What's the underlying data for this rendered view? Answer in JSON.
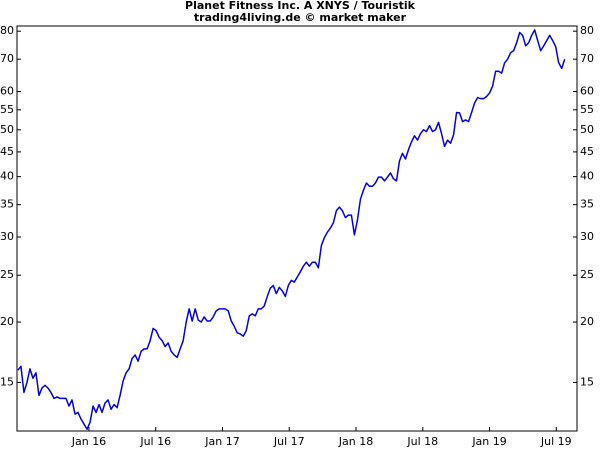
{
  "chart_data": {
    "type": "line",
    "title": "Planet Fitness Inc. A XNYS / Touristik",
    "subtitle": "trading4living.de © market maker",
    "log_y": true,
    "grid": false,
    "color": "#0000ee",
    "x": [
      2015.468,
      2015.4905,
      2015.513,
      2015.5355,
      2015.558,
      2015.5805,
      2015.603,
      2015.6255,
      2015.648,
      2015.6705,
      2015.693,
      2015.7155,
      2015.738,
      2015.7605,
      2015.783,
      2015.8055,
      2015.828,
      2015.8505,
      2015.873,
      2015.8955,
      2015.918,
      2015.9405,
      2015.963,
      2015.9855,
      2016.008,
      2016.0305,
      2016.053,
      2016.0755,
      2016.098,
      2016.1205,
      2016.143,
      2016.1655,
      2016.188,
      2016.2105,
      2016.233,
      2016.2555,
      2016.278,
      2016.3005,
      2016.323,
      2016.3455,
      2016.368,
      2016.3905,
      2016.413,
      2016.4355,
      2016.458,
      2016.4805,
      2016.503,
      2016.5255,
      2016.548,
      2016.5705,
      2016.593,
      2016.6155,
      2016.638,
      2016.6605,
      2016.683,
      2016.7055,
      2016.728,
      2016.7505,
      2016.773,
      2016.7955,
      2016.818,
      2016.8405,
      2016.863,
      2016.8855,
      2016.908,
      2016.9305,
      2016.953,
      2016.9755,
      2016.998,
      2017.0205,
      2017.043,
      2017.0655,
      2017.088,
      2017.1105,
      2017.133,
      2017.1555,
      2017.178,
      2017.2005,
      2017.223,
      2017.2455,
      2017.268,
      2017.2905,
      2017.313,
      2017.3355,
      2017.358,
      2017.3805,
      2017.403,
      2017.4255,
      2017.448,
      2017.4705,
      2017.493,
      2017.5155,
      2017.538,
      2017.5605,
      2017.583,
      2017.6055,
      2017.628,
      2017.6505,
      2017.673,
      2017.6955,
      2017.718,
      2017.7405,
      2017.763,
      2017.7855,
      2017.808,
      2017.8305,
      2017.853,
      2017.8755,
      2017.898,
      2017.9205,
      2017.943,
      2017.9655,
      2017.988,
      2018.0105,
      2018.033,
      2018.0555,
      2018.078,
      2018.1005,
      2018.123,
      2018.1455,
      2018.168,
      2018.1905,
      2018.213,
      2018.2355,
      2018.258,
      2018.2805,
      2018.303,
      2018.3255,
      2018.348,
      2018.3705,
      2018.393,
      2018.4155,
      2018.438,
      2018.4605,
      2018.483,
      2018.5055,
      2018.528,
      2018.5505,
      2018.573,
      2018.5955,
      2018.618,
      2018.6405,
      2018.663,
      2018.6855,
      2018.708,
      2018.7305,
      2018.753,
      2018.7755,
      2018.798,
      2018.8205,
      2018.843,
      2018.8655,
      2018.888,
      2018.9105,
      2018.933,
      2018.9555,
      2018.978,
      2019.0005,
      2019.023,
      2019.0455,
      2019.068,
      2019.0905,
      2019.113,
      2019.1355,
      2019.158,
      2019.1805,
      2019.203,
      2019.2255,
      2019.248,
      2019.2705,
      2019.293,
      2019.3155,
      2019.338,
      2019.3605,
      2019.383,
      2019.4055,
      2019.428,
      2019.4505,
      2019.473,
      2019.4955,
      2019.518,
      2019.5405,
      2019.563
    ],
    "values": [
      15.9,
      16.2,
      14.3,
      15.0,
      16.0,
      15.3,
      15.7,
      14.1,
      14.6,
      14.8,
      14.6,
      14.3,
      13.9,
      14.0,
      13.9,
      13.9,
      13.9,
      13.4,
      13.8,
      12.9,
      13.0,
      12.6,
      12.3,
      12.0,
      12.4,
      13.4,
      13.0,
      13.5,
      13.0,
      13.6,
      13.8,
      13.2,
      13.5,
      13.3,
      14.1,
      15.1,
      15.7,
      16.0,
      16.8,
      17.1,
      16.6,
      17.4,
      17.6,
      17.6,
      18.3,
      19.4,
      19.2,
      18.6,
      18.3,
      17.8,
      18.1,
      17.4,
      17.1,
      16.9,
      17.6,
      18.3,
      20.0,
      21.3,
      20.1,
      21.3,
      20.2,
      20.0,
      20.5,
      20.1,
      20.1,
      20.5,
      21.1,
      21.3,
      21.3,
      21.3,
      21.1,
      20.1,
      19.6,
      19.0,
      18.9,
      18.7,
      19.2,
      20.6,
      20.8,
      20.6,
      21.3,
      21.3,
      21.6,
      22.6,
      23.5,
      23.8,
      22.9,
      23.6,
      23.2,
      22.6,
      23.8,
      24.4,
      24.2,
      24.8,
      25.4,
      26.1,
      26.6,
      26.1,
      26.6,
      26.6,
      25.9,
      28.8,
      29.9,
      30.7,
      31.3,
      32.1,
      34.0,
      34.6,
      34.0,
      32.9,
      33.3,
      33.3,
      30.3,
      32.5,
      35.9,
      37.5,
      38.8,
      38.2,
      38.2,
      38.8,
      39.9,
      39.9,
      39.2,
      39.9,
      40.7,
      39.6,
      39.2,
      43.1,
      44.7,
      43.5,
      45.5,
      47.2,
      48.6,
      47.6,
      49.1,
      50.0,
      49.6,
      51.0,
      49.6,
      50.0,
      51.8,
      49.1,
      46.2,
      47.6,
      46.9,
      48.8,
      54.3,
      54.2,
      52.0,
      52.4,
      52.0,
      54.3,
      56.8,
      58.3,
      58.0,
      58.0,
      58.6,
      59.6,
      61.6,
      66.1,
      66.1,
      65.5,
      68.8,
      70.0,
      72.2,
      72.9,
      75.7,
      79.5,
      78.4,
      74.6,
      75.7,
      78.4,
      80.5,
      76.5,
      72.9,
      74.6,
      76.5,
      78.4,
      76.5,
      74.3,
      68.8,
      67.0,
      70.0
    ],
    "xlim": [
      2015.461,
      2019.655
    ],
    "xticks": [
      {
        "value": 2016,
        "label": "Jan 16"
      },
      {
        "value": 2016.5,
        "label": "Jul 16"
      },
      {
        "value": 2017,
        "label": "Jan 17"
      },
      {
        "value": 2017.5,
        "label": "Jul 17"
      },
      {
        "value": 2018,
        "label": "Jan 18"
      },
      {
        "value": 2018.5,
        "label": "Jul 18"
      },
      {
        "value": 2019,
        "label": "Jan 19"
      },
      {
        "value": 2019.5,
        "label": "Jul 19"
      }
    ],
    "ylim": [
      11.9,
      82
    ],
    "yticks": [
      15,
      20,
      25,
      30,
      35,
      40,
      45,
      50,
      55,
      60,
      70,
      80
    ]
  }
}
